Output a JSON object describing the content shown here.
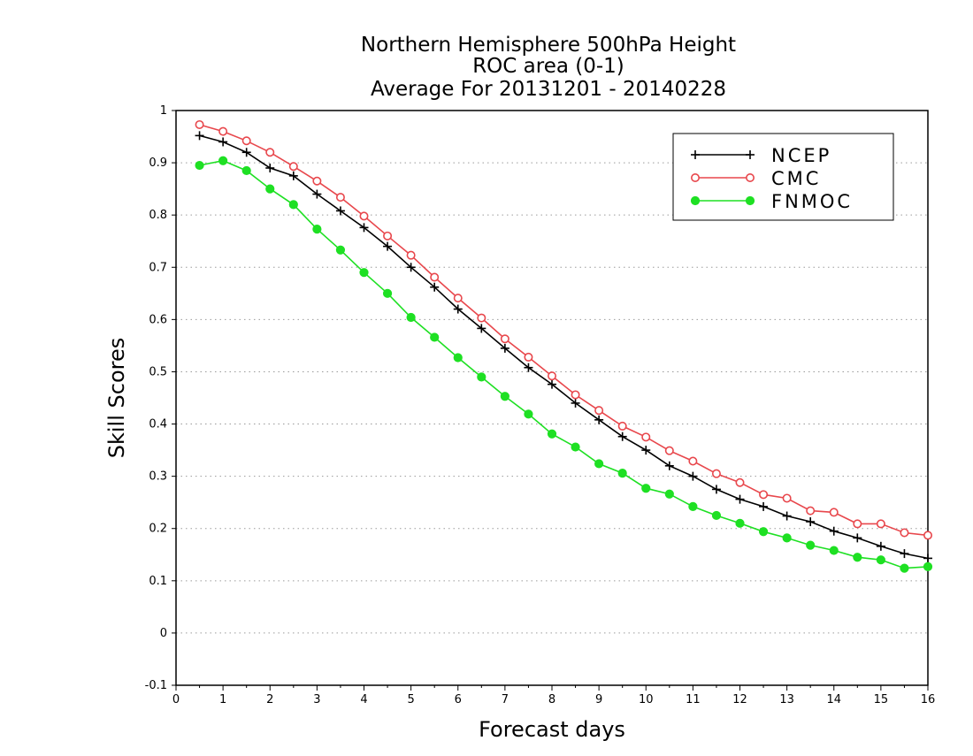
{
  "chart_data": {
    "type": "line",
    "title_lines": [
      "Northern Hemisphere 500hPa Height",
      "ROC area (0-1)",
      "Average For 20131201 - 20140228"
    ],
    "xlabel": "Forecast days",
    "ylabel": "Skill Scores",
    "xlim": [
      0,
      16
    ],
    "ylim": [
      -0.1,
      1
    ],
    "xticks": [
      0,
      1,
      2,
      3,
      4,
      5,
      6,
      7,
      8,
      9,
      10,
      11,
      12,
      13,
      14,
      15,
      16
    ],
    "yticks": [
      -0.1,
      0,
      0.1,
      0.2,
      0.3,
      0.4,
      0.5,
      0.6,
      0.7,
      0.8,
      0.9,
      1
    ],
    "ytick_labels": [
      "-0.1",
      "0",
      "0.1",
      "0.2",
      "0.3",
      "0.4",
      "0.5",
      "0.6",
      "0.7",
      "0.8",
      "0.9",
      "1"
    ],
    "grid": "horizontal dotted",
    "legend_position": "top-right",
    "x": [
      0.5,
      1,
      1.5,
      2,
      2.5,
      3,
      3.5,
      4,
      4.5,
      5,
      5.5,
      6,
      6.5,
      7,
      7.5,
      8,
      8.5,
      9,
      9.5,
      10,
      10.5,
      11,
      11.5,
      12,
      12.5,
      13,
      13.5,
      14,
      14.5,
      15,
      15.5,
      16
    ],
    "series": [
      {
        "name": "NCEP",
        "color": "#000000",
        "marker": "plus",
        "values": [
          0.952,
          0.94,
          0.92,
          0.89,
          0.875,
          0.84,
          0.808,
          0.776,
          0.74,
          0.7,
          0.662,
          0.62,
          0.583,
          0.545,
          0.508,
          0.476,
          0.44,
          0.408,
          0.376,
          0.35,
          0.32,
          0.3,
          0.275,
          0.256,
          0.242,
          0.224,
          0.213,
          0.195,
          0.182,
          0.166,
          0.152,
          0.143
        ]
      },
      {
        "name": "CMC",
        "color": "#e8474c",
        "marker": "open-circle",
        "values": [
          0.973,
          0.96,
          0.942,
          0.92,
          0.893,
          0.865,
          0.834,
          0.798,
          0.76,
          0.723,
          0.681,
          0.641,
          0.603,
          0.563,
          0.528,
          0.492,
          0.456,
          0.426,
          0.396,
          0.375,
          0.349,
          0.329,
          0.305,
          0.288,
          0.265,
          0.258,
          0.234,
          0.231,
          0.209,
          0.209,
          0.192,
          0.187
        ]
      },
      {
        "name": "FNMOC",
        "color": "#1ee023",
        "marker": "filled-circle",
        "values": [
          0.895,
          0.904,
          0.885,
          0.85,
          0.82,
          0.773,
          0.733,
          0.69,
          0.65,
          0.604,
          0.566,
          0.527,
          0.49,
          0.453,
          0.419,
          0.381,
          0.356,
          0.324,
          0.306,
          0.277,
          0.266,
          0.242,
          0.225,
          0.21,
          0.194,
          0.182,
          0.168,
          0.158,
          0.145,
          0.14,
          0.124,
          0.127
        ]
      }
    ]
  }
}
